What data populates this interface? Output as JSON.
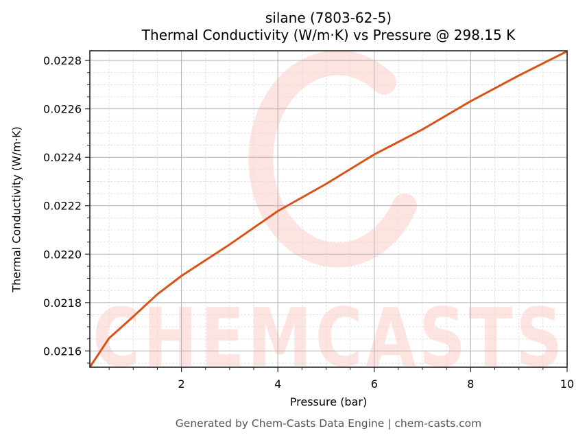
{
  "title": {
    "line1": "silane (7803-62-5)",
    "line2": "Thermal Conductivity (W/m·K) vs Pressure @ 298.15 K"
  },
  "axes": {
    "xlabel": "Pressure (bar)",
    "ylabel": "Thermal Conductivity (W/m·K)",
    "x_ticks": [
      "2",
      "4",
      "6",
      "8",
      "10"
    ],
    "y_ticks": [
      "0.0216",
      "0.0218",
      "0.0220",
      "0.0222",
      "0.0224",
      "0.0226",
      "0.0228"
    ]
  },
  "footer": "Generated by Chem-Casts Data Engine | chem-casts.com",
  "watermark": {
    "text": "CHEMCASTS"
  },
  "colors": {
    "line": "#d95319",
    "watermark": "#fde4e1",
    "grid_major": "#b0b0b0",
    "grid_minor": "#dddddd",
    "footer_text": "#555555"
  },
  "chart_data": {
    "type": "line",
    "title": "silane (7803-62-5)\nThermal Conductivity (W/m·K) vs Pressure @ 298.15 K",
    "xlabel": "Pressure (bar)",
    "ylabel": "Thermal Conductivity (W/m·K)",
    "xlim": [
      0.1,
      10
    ],
    "ylim": [
      0.021533,
      0.02284
    ],
    "x_ticks": [
      2,
      4,
      6,
      8,
      10
    ],
    "y_ticks": [
      0.0216,
      0.0218,
      0.022,
      0.0222,
      0.0224,
      0.0226,
      0.0228
    ],
    "grid": true,
    "minor_grid": true,
    "legend": null,
    "series": [
      {
        "name": "silane",
        "x": [
          0.1,
          0.5,
          1.0,
          1.5,
          2.0,
          3.0,
          4.0,
          5.0,
          6.0,
          7.0,
          8.0,
          9.0,
          10.0
        ],
        "values": [
          0.021533,
          0.021653,
          0.021742,
          0.021834,
          0.02191,
          0.02204,
          0.022178,
          0.02229,
          0.022412,
          0.022515,
          0.022632,
          0.022738,
          0.022838
        ]
      }
    ],
    "footer": "Generated by Chem-Casts Data Engine | chem-casts.com"
  }
}
